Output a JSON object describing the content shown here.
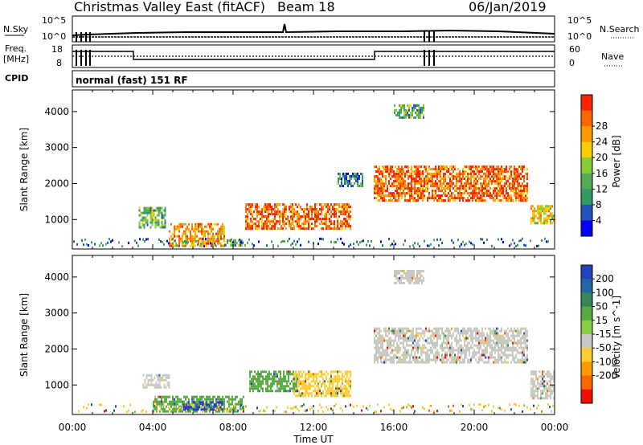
{
  "header": {
    "station": "Christmas Valley East (fitACF)",
    "beam": "Beam 18",
    "date": "06/Jan/2019"
  },
  "strip": {
    "nsky_label": "N.Sky",
    "nsearch_label": "N.Search",
    "nsky_ticks": [
      "10^5",
      "10^0"
    ],
    "nsearch_ticks": [
      "10^5",
      "10^0"
    ],
    "freq_label": "Freq.",
    "freq_unit": "[MHz]",
    "freq_ticks": [
      "18",
      "8"
    ],
    "nave_label": "Nave",
    "nave_ticks": [
      "60",
      "0"
    ],
    "cpid_label": "CPID",
    "cpid_value": "normal (fast) 151 RF"
  },
  "chart_data": [
    {
      "type": "heatmap",
      "name": "power",
      "ylabel": "Slant Range [km]",
      "yticks": [
        1000,
        2000,
        3000,
        4000
      ],
      "ylim": [
        180,
        4600
      ],
      "xlim_hours": [
        0,
        24
      ],
      "colorbar": {
        "label": "Power [dB]",
        "ticks": [
          "4",
          "8",
          "12",
          "16",
          "20",
          "24",
          "28"
        ],
        "colors": [
          "#0000ff",
          "#2255bb",
          "#339966",
          "#55aa55",
          "#88cc33",
          "#ffcc00",
          "#ff9900",
          "#ff6600",
          "#ff2200"
        ]
      },
      "regions": [
        {
          "t0": 3.3,
          "t1": 4.6,
          "r0": 800,
          "r1": 1350,
          "level": 3
        },
        {
          "t0": 4.8,
          "t1": 7.6,
          "r0": 250,
          "r1": 900,
          "level": 6
        },
        {
          "t0": 7.6,
          "t1": 8.6,
          "r0": 250,
          "r1": 450,
          "level": 3
        },
        {
          "t0": 8.6,
          "t1": 13.8,
          "r0": 750,
          "r1": 1450,
          "level": 7
        },
        {
          "t0": 15.0,
          "t1": 22.6,
          "r0": 1550,
          "r1": 2500,
          "level": 7
        },
        {
          "t0": 16.0,
          "t1": 17.5,
          "r0": 3800,
          "r1": 4200,
          "level": 3
        },
        {
          "t0": 22.8,
          "t1": 24.0,
          "r0": 900,
          "r1": 1400,
          "level": 5
        },
        {
          "t0": 13.2,
          "t1": 14.4,
          "r0": 1900,
          "r1": 2300,
          "level": 2
        }
      ]
    },
    {
      "type": "heatmap",
      "name": "velocity",
      "ylabel": "Slant Range [km]",
      "xlabel": "Time UT",
      "yticks": [
        1000,
        2000,
        3000,
        4000
      ],
      "ylim": [
        180,
        4600
      ],
      "xlim_hours": [
        0,
        24
      ],
      "xticks": [
        "00:00",
        "04:00",
        "08:00",
        "12:00",
        "16:00",
        "20:00",
        "00:00"
      ],
      "colorbar": {
        "label": "Velocity [m s^-1]",
        "ticks": [
          "200",
          "100",
          "50",
          "15",
          "-15",
          "-50",
          "-100",
          "-200"
        ],
        "colors": [
          "#2244bb",
          "#2266aa",
          "#338855",
          "#55aa44",
          "#88cc44",
          "#c8c8c0",
          "#ffcc33",
          "#ff9900",
          "#ff6600",
          "#ee1100"
        ]
      },
      "regions": [
        {
          "t0": 3.5,
          "t1": 4.8,
          "r0": 900,
          "r1": 1300,
          "color": "#c8c8c0"
        },
        {
          "t0": 4.0,
          "t1": 8.5,
          "r0": 250,
          "r1": 700,
          "color": "#55aa44"
        },
        {
          "t0": 5.5,
          "t1": 7.5,
          "r0": 300,
          "r1": 550,
          "color": "#2244bb"
        },
        {
          "t0": 8.8,
          "t1": 11.2,
          "r0": 800,
          "r1": 1400,
          "color": "#55aa44"
        },
        {
          "t0": 11.0,
          "t1": 13.8,
          "r0": 700,
          "r1": 1400,
          "color": "#ffcc33"
        },
        {
          "t0": 15.0,
          "t1": 22.6,
          "r0": 1600,
          "r1": 2600,
          "color": "#c8c8c0"
        },
        {
          "t0": 22.8,
          "t1": 24.0,
          "r0": 600,
          "r1": 1400,
          "color": "#c8c8c0"
        },
        {
          "t0": 16.0,
          "t1": 17.5,
          "r0": 3800,
          "r1": 4200,
          "color": "#c8c8c0"
        }
      ]
    }
  ]
}
